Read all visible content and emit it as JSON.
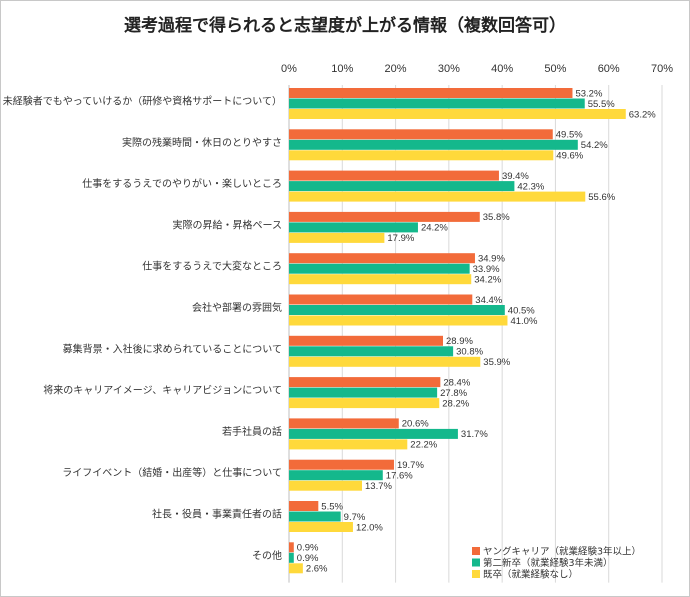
{
  "chart_data": {
    "type": "bar",
    "orientation": "horizontal",
    "title": "選考過程で得られると志望度が上がる情報（複数回答可）",
    "xlabel": "",
    "ylabel": "",
    "xlim": [
      0,
      70
    ],
    "x_ticks": [
      "0%",
      "10%",
      "20%",
      "30%",
      "40%",
      "50%",
      "60%",
      "70%"
    ],
    "x_tick_values": [
      0,
      10,
      20,
      30,
      40,
      50,
      60,
      70
    ],
    "grid": true,
    "legend_position": "bottom-right",
    "categories": [
      "未経験者でもやっていけるか（研修や資格サポートについて）",
      "実際の残業時間・休日のとりやすさ",
      "仕事をするうえでのやりがい・楽しいところ",
      "実際の昇給・昇格ペース",
      "仕事をするうえで大変なところ",
      "会社や部署の雰囲気",
      "募集背景・入社後に求められていることについて",
      "将来のキャリアイメージ、キャリアビジョンについて",
      "若手社員の話",
      "ライフイベント（結婚・出産等）と仕事について",
      "社長・役員・事業責任者の話",
      "その他"
    ],
    "series": [
      {
        "name": "ヤングキャリア（就業経験3年以上）",
        "color": "#F26B3A",
        "values": [
          53.2,
          49.5,
          39.4,
          35.8,
          34.9,
          34.4,
          28.9,
          28.4,
          20.6,
          19.7,
          5.5,
          0.9
        ],
        "labels": [
          "53.2%",
          "49.5%",
          "39.4%",
          "35.8%",
          "34.9%",
          "34.4%",
          "28.9%",
          "28.4%",
          "20.6%",
          "19.7%",
          "5.5%",
          "0.9%"
        ]
      },
      {
        "name": "第二新卒（就業経験3年未満）",
        "color": "#14B88C",
        "values": [
          55.5,
          54.2,
          42.3,
          24.2,
          33.9,
          40.5,
          30.8,
          27.8,
          31.7,
          17.6,
          9.7,
          0.9
        ],
        "labels": [
          "55.5%",
          "54.2%",
          "42.3%",
          "24.2%",
          "33.9%",
          "40.5%",
          "30.8%",
          "27.8%",
          "31.7%",
          "17.6%",
          "9.7%",
          "0.9%"
        ]
      },
      {
        "name": "既卒（就業経験なし）",
        "color": "#FFD93B",
        "values": [
          63.2,
          49.6,
          55.6,
          17.9,
          34.2,
          41.0,
          35.9,
          28.2,
          22.2,
          13.7,
          12.0,
          2.6
        ],
        "labels": [
          "63.2%",
          "49.6%",
          "55.6%",
          "17.9%",
          "34.2%",
          "41.0%",
          "35.9%",
          "28.2%",
          "22.2%",
          "13.7%",
          "12.0%",
          "2.6%"
        ]
      }
    ]
  },
  "colors": {
    "grid": "#d9d9d9",
    "axis": "#bfbfbf",
    "frame": "#c8c8c8"
  }
}
